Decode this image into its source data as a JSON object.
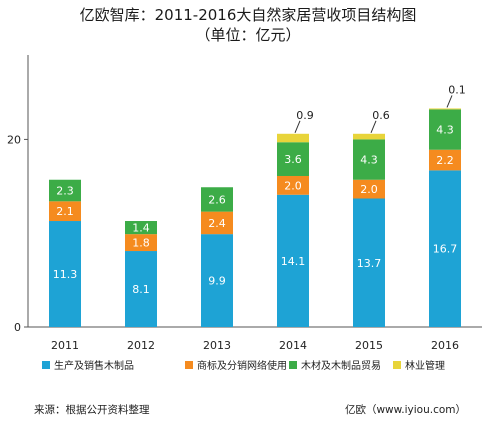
{
  "chart_data": {
    "type": "bar",
    "stacked": true,
    "title": "亿欧智库：2011-2016大自然家居营收项目结构图",
    "subtitle": "（单位：亿元）",
    "categories": [
      "2011",
      "2012",
      "2013",
      "2014",
      "2015",
      "2016"
    ],
    "series": [
      {
        "name": "生产及销售木制品",
        "color": "#1ea3d5",
        "values": [
          11.3,
          8.1,
          9.9,
          14.1,
          13.7,
          16.7
        ],
        "labels": [
          "11.3",
          "8.1",
          "9.9",
          "14.1",
          "13.7",
          "16.7"
        ]
      },
      {
        "name": "商标及分销网络使用",
        "color": "#f58b1f",
        "values": [
          2.1,
          1.8,
          2.4,
          2.0,
          2.0,
          2.2
        ],
        "labels": [
          "2.1",
          "1.8",
          "2.4",
          "2.0",
          "2.0",
          "2.2"
        ]
      },
      {
        "name": "木材及木制品贸易",
        "color": "#3cac47",
        "values": [
          2.3,
          1.4,
          2.6,
          3.6,
          4.3,
          4.3
        ],
        "labels": [
          "2.3",
          "1.4",
          "2.6",
          "3.6",
          "4.3",
          "4.3"
        ]
      },
      {
        "name": "林业管理",
        "color": "#e8d43a",
        "values": [
          0,
          0,
          0,
          0.9,
          0.6,
          0.1
        ],
        "labels": [
          "",
          "",
          "",
          "0.9",
          "0.6",
          "0.1"
        ]
      }
    ],
    "yticks": [
      "0",
      "20"
    ],
    "ylim": [
      0,
      29
    ],
    "grid": false,
    "legend": "bottom"
  },
  "footer": {
    "source": "来源：根据公开资料整理",
    "credit": "亿欧（www.iyiou.com）"
  }
}
